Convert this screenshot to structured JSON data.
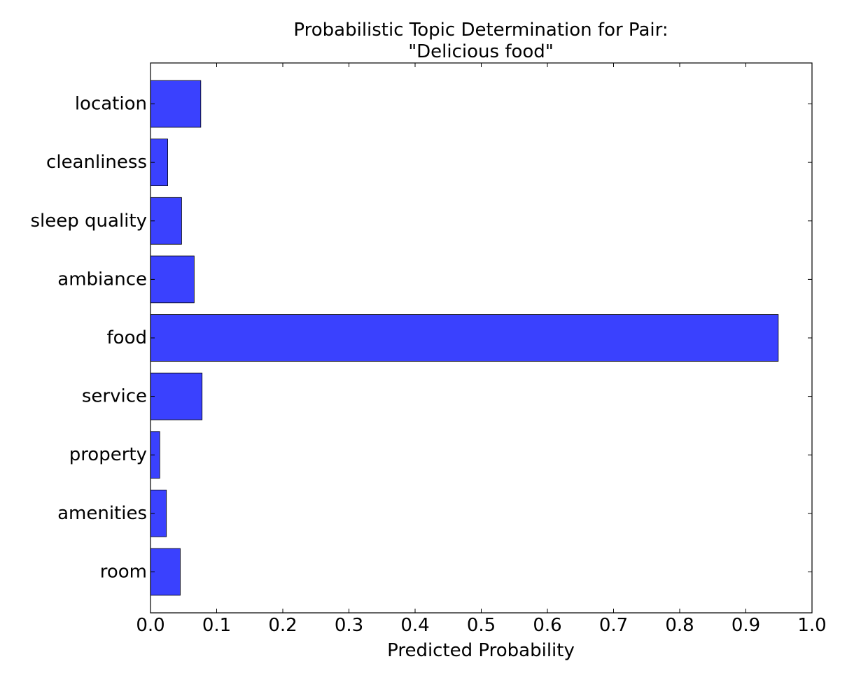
{
  "chart_data": {
    "type": "bar",
    "orientation": "horizontal",
    "title_lines": [
      "Probabilistic Topic Determination for Pair:",
      "\"Delicious food\""
    ],
    "xlabel": "Predicted Probability",
    "ylabel": "",
    "xlim": [
      0.0,
      1.0
    ],
    "x_ticks": [
      "0.0",
      "0.1",
      "0.2",
      "0.3",
      "0.4",
      "0.5",
      "0.6",
      "0.7",
      "0.8",
      "0.9",
      "1.0"
    ],
    "categories": [
      "room",
      "amenities",
      "property",
      "service",
      "food",
      "ambiance",
      "sleep quality",
      "cleanliness",
      "location"
    ],
    "values": [
      0.045,
      0.024,
      0.014,
      0.078,
      0.949,
      0.066,
      0.047,
      0.026,
      0.076
    ],
    "bar_color": "#3a41fe",
    "bar_edge_color": "#000000",
    "grid": false,
    "legend": false
  }
}
